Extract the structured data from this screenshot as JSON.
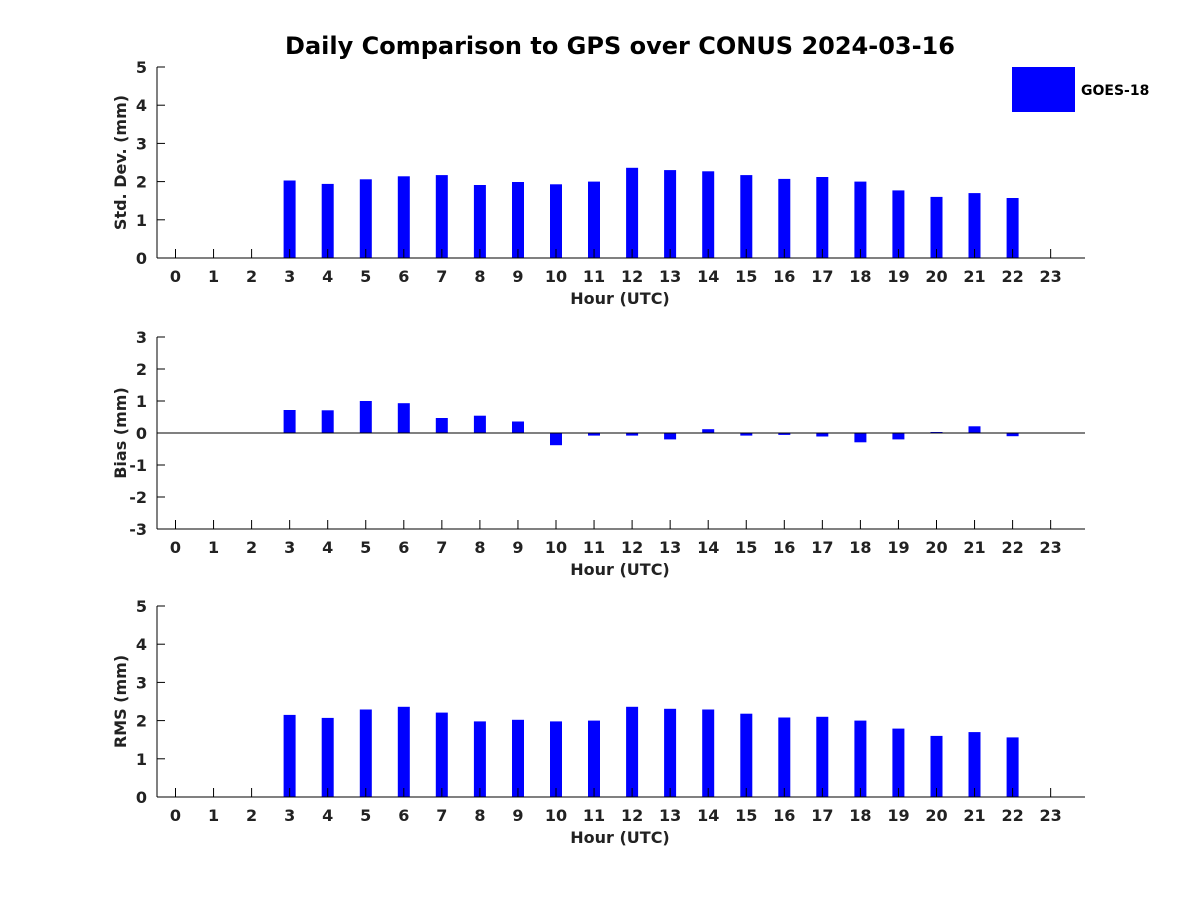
{
  "title": "Daily Comparison to GPS over CONUS 2024-03-16",
  "legend": {
    "label": "GOES-18",
    "color": "#0000ff"
  },
  "chart_data": [
    {
      "type": "bar",
      "xlabel": "Hour (UTC)",
      "ylabel": "Std. Dev. (mm)",
      "ylim": [
        0,
        5
      ],
      "yticks": [
        0,
        1,
        2,
        3,
        4,
        5
      ],
      "categories": [
        "0",
        "1",
        "2",
        "3",
        "4",
        "5",
        "6",
        "7",
        "8",
        "9",
        "10",
        "11",
        "12",
        "13",
        "14",
        "15",
        "16",
        "17",
        "18",
        "19",
        "20",
        "21",
        "22",
        "23"
      ],
      "series": [
        {
          "name": "GOES-18",
          "color": "#0000ff",
          "values": [
            null,
            null,
            null,
            2.03,
            1.94,
            2.06,
            2.14,
            2.17,
            1.91,
            1.99,
            1.93,
            2.0,
            2.36,
            2.3,
            2.27,
            2.17,
            2.07,
            2.12,
            2.0,
            1.77,
            1.6,
            1.7,
            1.57,
            null
          ]
        }
      ]
    },
    {
      "type": "bar",
      "xlabel": "Hour (UTC)",
      "ylabel": "Bias (mm)",
      "ylim": [
        -3,
        3
      ],
      "yticks": [
        -3,
        -2,
        -1,
        0,
        1,
        2,
        3
      ],
      "zero_line": true,
      "categories": [
        "0",
        "1",
        "2",
        "3",
        "4",
        "5",
        "6",
        "7",
        "8",
        "9",
        "10",
        "11",
        "12",
        "13",
        "14",
        "15",
        "16",
        "17",
        "18",
        "19",
        "20",
        "21",
        "22",
        "23"
      ],
      "series": [
        {
          "name": "GOES-18",
          "color": "#0000ff",
          "values": [
            null,
            null,
            null,
            0.72,
            0.71,
            1.0,
            0.93,
            0.47,
            0.54,
            0.36,
            -0.38,
            -0.08,
            -0.08,
            -0.2,
            0.12,
            -0.08,
            -0.06,
            -0.11,
            -0.29,
            -0.2,
            0.03,
            0.21,
            -0.1,
            null
          ]
        }
      ]
    },
    {
      "type": "bar",
      "xlabel": "Hour (UTC)",
      "ylabel": "RMS (mm)",
      "ylim": [
        0,
        5
      ],
      "yticks": [
        0,
        1,
        2,
        3,
        4,
        5
      ],
      "categories": [
        "0",
        "1",
        "2",
        "3",
        "4",
        "5",
        "6",
        "7",
        "8",
        "9",
        "10",
        "11",
        "12",
        "13",
        "14",
        "15",
        "16",
        "17",
        "18",
        "19",
        "20",
        "21",
        "22",
        "23"
      ],
      "series": [
        {
          "name": "GOES-18",
          "color": "#0000ff",
          "values": [
            null,
            null,
            null,
            2.15,
            2.07,
            2.29,
            2.36,
            2.21,
            1.98,
            2.02,
            1.98,
            2.0,
            2.36,
            2.31,
            2.29,
            2.18,
            2.08,
            2.1,
            2.0,
            1.79,
            1.6,
            1.7,
            1.56,
            null
          ]
        }
      ]
    }
  ]
}
